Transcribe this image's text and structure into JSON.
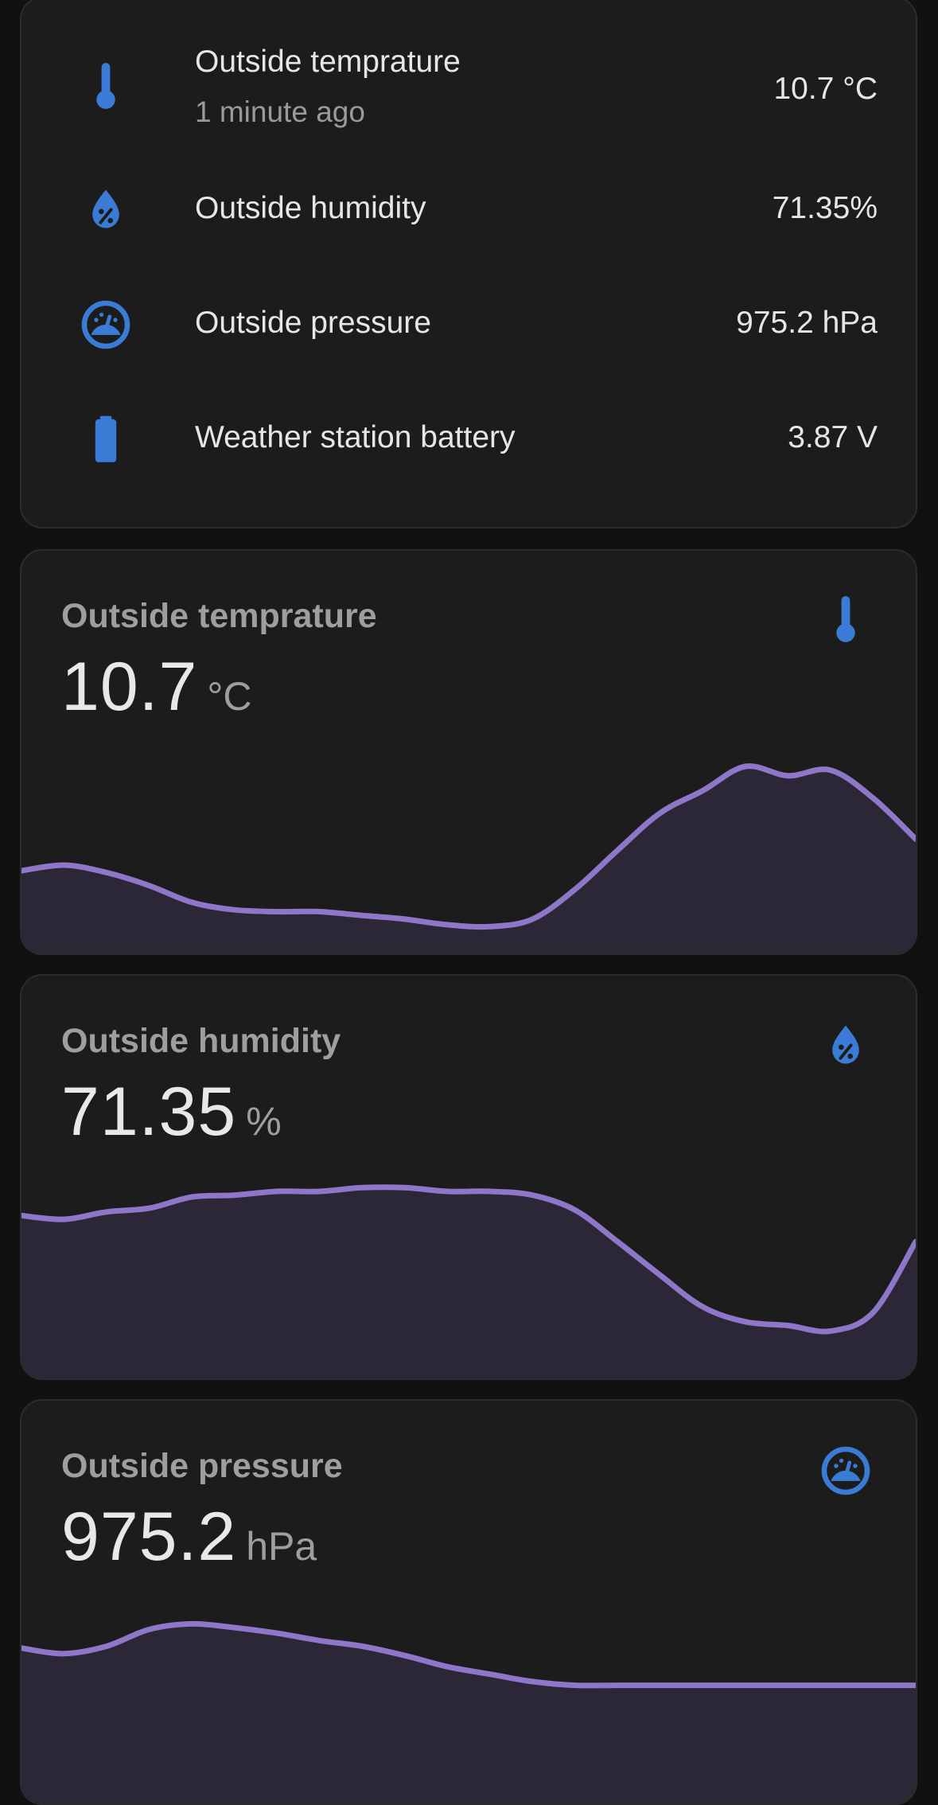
{
  "colors": {
    "background": "#111111",
    "card": "#1c1c1c",
    "icon": "#3a7bd5",
    "graph_line": "#8e76c8",
    "graph_fill": "#2b2736"
  },
  "entities": [
    {
      "icon": "thermometer-icon",
      "name": "Outside temprature",
      "secondary": "1 minute ago",
      "value": "10.7 °C"
    },
    {
      "icon": "humidity-drop-icon",
      "name": "Outside humidity",
      "value": "71.35%"
    },
    {
      "icon": "gauge-icon",
      "name": "Outside pressure",
      "value": "975.2 hPa"
    },
    {
      "icon": "battery-icon",
      "name": "Weather station battery",
      "value": "3.87 V"
    }
  ],
  "sensor_cards": [
    {
      "title": "Outside temprature",
      "value": "10.7",
      "unit": "°C",
      "icon": "thermometer-icon",
      "trend": [
        0.41,
        0.44,
        0.4,
        0.33,
        0.24,
        0.2,
        0.19,
        0.19,
        0.17,
        0.15,
        0.12,
        0.11,
        0.15,
        0.31,
        0.52,
        0.72,
        0.84,
        0.97,
        0.92,
        0.95,
        0.8,
        0.58
      ]
    },
    {
      "title": "Outside humidity",
      "value": "71.35",
      "unit": "%",
      "icon": "humidity-drop-icon",
      "trend": [
        0.84,
        0.82,
        0.86,
        0.88,
        0.94,
        0.95,
        0.97,
        0.97,
        0.99,
        0.99,
        0.97,
        0.97,
        0.95,
        0.87,
        0.7,
        0.52,
        0.35,
        0.27,
        0.25,
        0.22,
        0.32,
        0.7
      ]
    },
    {
      "title": "Outside pressure",
      "value": "975.2",
      "unit": "hPa",
      "icon": "gauge-icon",
      "trend": [
        0.8,
        0.77,
        0.81,
        0.9,
        0.93,
        0.91,
        0.88,
        0.84,
        0.81,
        0.76,
        0.7,
        0.66,
        0.62,
        0.6,
        0.6,
        0.6,
        0.6,
        0.6,
        0.6,
        0.6,
        0.6,
        0.6
      ]
    }
  ]
}
